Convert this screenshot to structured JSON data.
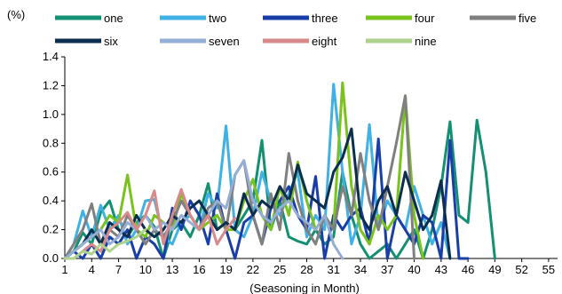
{
  "chart_data": {
    "type": "line",
    "y_unit_label": "(%)",
    "xlabel": "(Seasoning in Month)",
    "ylabel": "",
    "title": "",
    "xlim": [
      1,
      56
    ],
    "ylim": [
      0,
      1.4
    ],
    "y_ticks": [
      "0.0",
      "0.2",
      "0.4",
      "0.6",
      "0.8",
      "1.0",
      "1.2",
      "1.4"
    ],
    "x_ticks": [
      "1",
      "4",
      "7",
      "10",
      "13",
      "16",
      "19",
      "22",
      "25",
      "28",
      "31",
      "34",
      "37",
      "40",
      "43",
      "46",
      "49",
      "52",
      "55"
    ],
    "grid": false,
    "legend_position": "top",
    "series": [
      {
        "name": "one",
        "color": "#138f72",
        "x": [
          1,
          2,
          3,
          4,
          5,
          6,
          7,
          8,
          9,
          10,
          11,
          12,
          13,
          14,
          15,
          16,
          17,
          18,
          19,
          20,
          21,
          22,
          23,
          24,
          25,
          26,
          27,
          28,
          29,
          30,
          31,
          32,
          33,
          34,
          35,
          36,
          37,
          38,
          39,
          40,
          41,
          42,
          43,
          44,
          45,
          46,
          47,
          48,
          49
        ],
        "y": [
          0.0,
          0.05,
          0.18,
          0.1,
          0.32,
          0.4,
          0.2,
          0.15,
          0.25,
          0.3,
          0.22,
          0.0,
          0.2,
          0.25,
          0.15,
          0.3,
          0.52,
          0.2,
          0.25,
          0.2,
          0.3,
          0.4,
          0.82,
          0.2,
          0.4,
          0.15,
          0.12,
          0.1,
          0.2,
          0.1,
          0.15,
          0.6,
          0.3,
          0.1,
          0.0,
          0.05,
          0.1,
          0.0,
          0.1,
          0.2,
          0.0,
          0.2,
          0.5,
          0.95,
          0.3,
          0.25,
          0.96,
          0.6,
          0.0
        ]
      },
      {
        "name": "two",
        "color": "#3fb1e5",
        "x": [
          1,
          2,
          3,
          4,
          5,
          6,
          7,
          8,
          9,
          10,
          11,
          12,
          13,
          14,
          15,
          16,
          17,
          18,
          19,
          20,
          21,
          22,
          23,
          24,
          25,
          26,
          27,
          28,
          29,
          30,
          31,
          32,
          33,
          34,
          35,
          36,
          37,
          38,
          39,
          40,
          41,
          42,
          43,
          44
        ],
        "y": [
          0.0,
          0.1,
          0.33,
          0.15,
          0.37,
          0.2,
          0.3,
          0.1,
          0.2,
          0.4,
          0.41,
          0.15,
          0.1,
          0.25,
          0.3,
          0.2,
          0.45,
          0.35,
          0.92,
          0.2,
          0.15,
          0.3,
          0.6,
          0.4,
          0.3,
          0.45,
          0.6,
          0.15,
          0.3,
          0.2,
          1.21,
          0.6,
          0.1,
          0.3,
          0.93,
          0.2,
          0.4,
          0.3,
          0.2,
          0.5,
          0.3,
          0.1,
          0.25,
          0.0
        ]
      },
      {
        "name": "three",
        "color": "#1a3ea8",
        "x": [
          1,
          2,
          3,
          4,
          5,
          6,
          7,
          8,
          9,
          10,
          11,
          12,
          13,
          14,
          15,
          16,
          17,
          18,
          19,
          20,
          21,
          22,
          23,
          24,
          25,
          26,
          27,
          28,
          29,
          30,
          31,
          32,
          33,
          34,
          35,
          36,
          37,
          38,
          39,
          40,
          41,
          42,
          43,
          44,
          45,
          46
        ],
        "y": [
          0.0,
          0.05,
          0.0,
          0.1,
          0.0,
          0.15,
          0.1,
          0.2,
          0.0,
          0.15,
          0.1,
          0.0,
          0.35,
          0.2,
          0.4,
          0.3,
          0.1,
          0.45,
          0.2,
          0.0,
          0.25,
          0.3,
          0.1,
          0.35,
          0.4,
          0.5,
          0.3,
          0.2,
          0.57,
          0.0,
          0.3,
          0.2,
          0.3,
          0.35,
          0.1,
          0.83,
          0.0,
          0.3,
          0.2,
          0.1,
          0.3,
          0.25,
          0.0,
          0.82,
          0.0,
          0.0
        ]
      },
      {
        "name": "four",
        "color": "#7ac21c",
        "x": [
          1,
          2,
          3,
          4,
          5,
          6,
          7,
          8,
          9,
          10,
          11,
          12,
          13,
          14,
          15,
          16,
          17,
          18,
          19,
          20,
          21,
          22,
          23,
          24,
          25,
          26,
          27,
          28,
          29,
          30,
          31,
          32,
          33,
          34,
          35,
          36,
          37,
          38,
          39,
          40,
          41
        ],
        "y": [
          0.0,
          0.05,
          0.1,
          0.15,
          0.2,
          0.3,
          0.25,
          0.58,
          0.2,
          0.15,
          0.3,
          0.25,
          0.2,
          0.45,
          0.3,
          0.2,
          0.25,
          0.3,
          0.2,
          0.2,
          0.4,
          0.55,
          0.3,
          0.2,
          0.5,
          0.3,
          0.67,
          0.4,
          0.2,
          0.3,
          0.2,
          1.22,
          0.5,
          0.2,
          0.1,
          0.3,
          0.2,
          0.3,
          1.13,
          0.3,
          0.0
        ]
      },
      {
        "name": "five",
        "color": "#808080",
        "x": [
          1,
          2,
          3,
          4,
          5,
          6,
          7,
          8,
          9,
          10,
          11,
          12,
          13,
          14,
          15,
          16,
          17,
          18,
          19,
          20,
          21,
          22,
          23,
          24,
          25,
          26,
          27,
          28,
          29,
          30,
          31,
          32,
          33,
          34,
          35,
          36,
          37,
          38,
          39,
          40
        ],
        "y": [
          0.0,
          0.1,
          0.2,
          0.38,
          0.1,
          0.2,
          0.15,
          0.3,
          0.2,
          0.1,
          0.2,
          0.15,
          0.25,
          0.4,
          0.3,
          0.2,
          0.35,
          0.4,
          0.2,
          0.58,
          0.68,
          0.3,
          0.1,
          0.45,
          0.2,
          0.73,
          0.4,
          0.2,
          0.1,
          0.3,
          0.2,
          0.5,
          0.3,
          0.73,
          0.4,
          0.2,
          0.5,
          0.8,
          1.13,
          0.0
        ]
      },
      {
        "name": "six",
        "color": "#0b2e4f",
        "x": [
          1,
          2,
          3,
          4,
          5,
          6,
          7,
          8,
          9,
          10,
          11,
          12,
          13,
          14,
          15,
          16,
          17,
          18,
          19,
          20,
          21,
          22,
          23,
          24,
          25,
          26,
          27,
          28,
          29,
          30,
          31,
          32,
          33,
          34,
          35,
          36,
          37,
          38,
          39,
          40,
          41,
          42,
          43,
          44
        ],
        "y": [
          0.0,
          0.05,
          0.1,
          0.2,
          0.1,
          0.25,
          0.2,
          0.15,
          0.3,
          0.2,
          0.15,
          0.2,
          0.3,
          0.25,
          0.35,
          0.4,
          0.3,
          0.2,
          0.25,
          0.2,
          0.45,
          0.3,
          0.4,
          0.35,
          0.5,
          0.4,
          0.65,
          0.45,
          0.4,
          0.35,
          0.6,
          0.7,
          0.9,
          0.3,
          0.2,
          0.4,
          0.5,
          0.3,
          0.6,
          0.4,
          0.2,
          0.3,
          0.54,
          0.0
        ]
      },
      {
        "name": "seven",
        "color": "#94aed6",
        "x": [
          1,
          2,
          3,
          4,
          5,
          6,
          7,
          8,
          9,
          10,
          11,
          12,
          13,
          14,
          15,
          16,
          17,
          18,
          19,
          20,
          21,
          22,
          23,
          24,
          25,
          26,
          27,
          28,
          29,
          30,
          31,
          32
        ],
        "y": [
          0.0,
          0.05,
          0.1,
          0.15,
          0.2,
          0.1,
          0.15,
          0.25,
          0.2,
          0.3,
          0.2,
          0.25,
          0.2,
          0.3,
          0.25,
          0.2,
          0.3,
          0.4,
          0.35,
          0.58,
          0.68,
          0.4,
          0.3,
          0.25,
          0.35,
          0.4,
          0.3,
          0.25,
          0.2,
          0.3,
          0.1,
          0.0
        ]
      },
      {
        "name": "eight",
        "color": "#d8898a",
        "x": [
          1,
          2,
          3,
          4,
          5,
          6,
          7,
          8,
          9,
          10,
          11,
          12,
          13,
          14,
          15,
          16,
          17,
          18,
          19,
          20
        ],
        "y": [
          0.0,
          0.0,
          0.05,
          0.1,
          0.05,
          0.2,
          0.25,
          0.32,
          0.2,
          0.3,
          0.47,
          0.1,
          0.3,
          0.48,
          0.3,
          0.2,
          0.3,
          0.1,
          0.2,
          0.28
        ]
      },
      {
        "name": "nine",
        "color": "#aed18b",
        "x": [
          1,
          2,
          3,
          4,
          5,
          6,
          7,
          8,
          9,
          10
        ],
        "y": [
          0.0,
          0.0,
          0.05,
          0.03,
          0.1,
          0.05,
          0.1,
          0.12,
          0.15,
          0.2
        ]
      }
    ]
  }
}
